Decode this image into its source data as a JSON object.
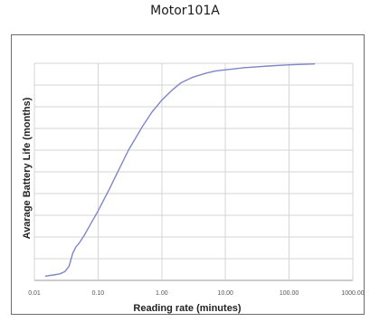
{
  "page": {
    "title": "Motor101A"
  },
  "chart_data": {
    "type": "line",
    "title": "",
    "xlabel": "Reading rate (minutes)",
    "ylabel": "Avarage Battery Life (months)",
    "xscale": "log",
    "xlim": [
      0.01,
      1000
    ],
    "xticks": [
      0.01,
      0.1,
      1,
      10,
      100,
      1000
    ],
    "xtick_labels": [
      "0.01",
      "0.10",
      "1.00",
      "10.00",
      "100.00",
      "1000.00"
    ],
    "y_tick_labels_shown": false,
    "y_gridlines": 10,
    "grid": true,
    "legend": "none",
    "line_color": "#7f86c9",
    "series": [
      {
        "x": [
          0.015,
          0.02,
          0.025,
          0.03,
          0.035,
          0.04,
          0.045,
          0.05,
          0.06,
          0.08,
          0.1,
          0.15,
          0.2,
          0.3,
          0.5,
          0.7,
          1,
          1.5,
          2,
          3,
          5,
          7,
          10,
          20,
          50,
          100,
          250
        ],
        "y": [
          0.2,
          0.25,
          0.3,
          0.4,
          0.65,
          1.25,
          1.55,
          1.7,
          2.05,
          2.7,
          3.2,
          4.2,
          4.95,
          6.0,
          7.1,
          7.75,
          8.3,
          8.8,
          9.1,
          9.35,
          9.55,
          9.65,
          9.7,
          9.8,
          9.88,
          9.93,
          9.97
        ]
      }
    ]
  }
}
